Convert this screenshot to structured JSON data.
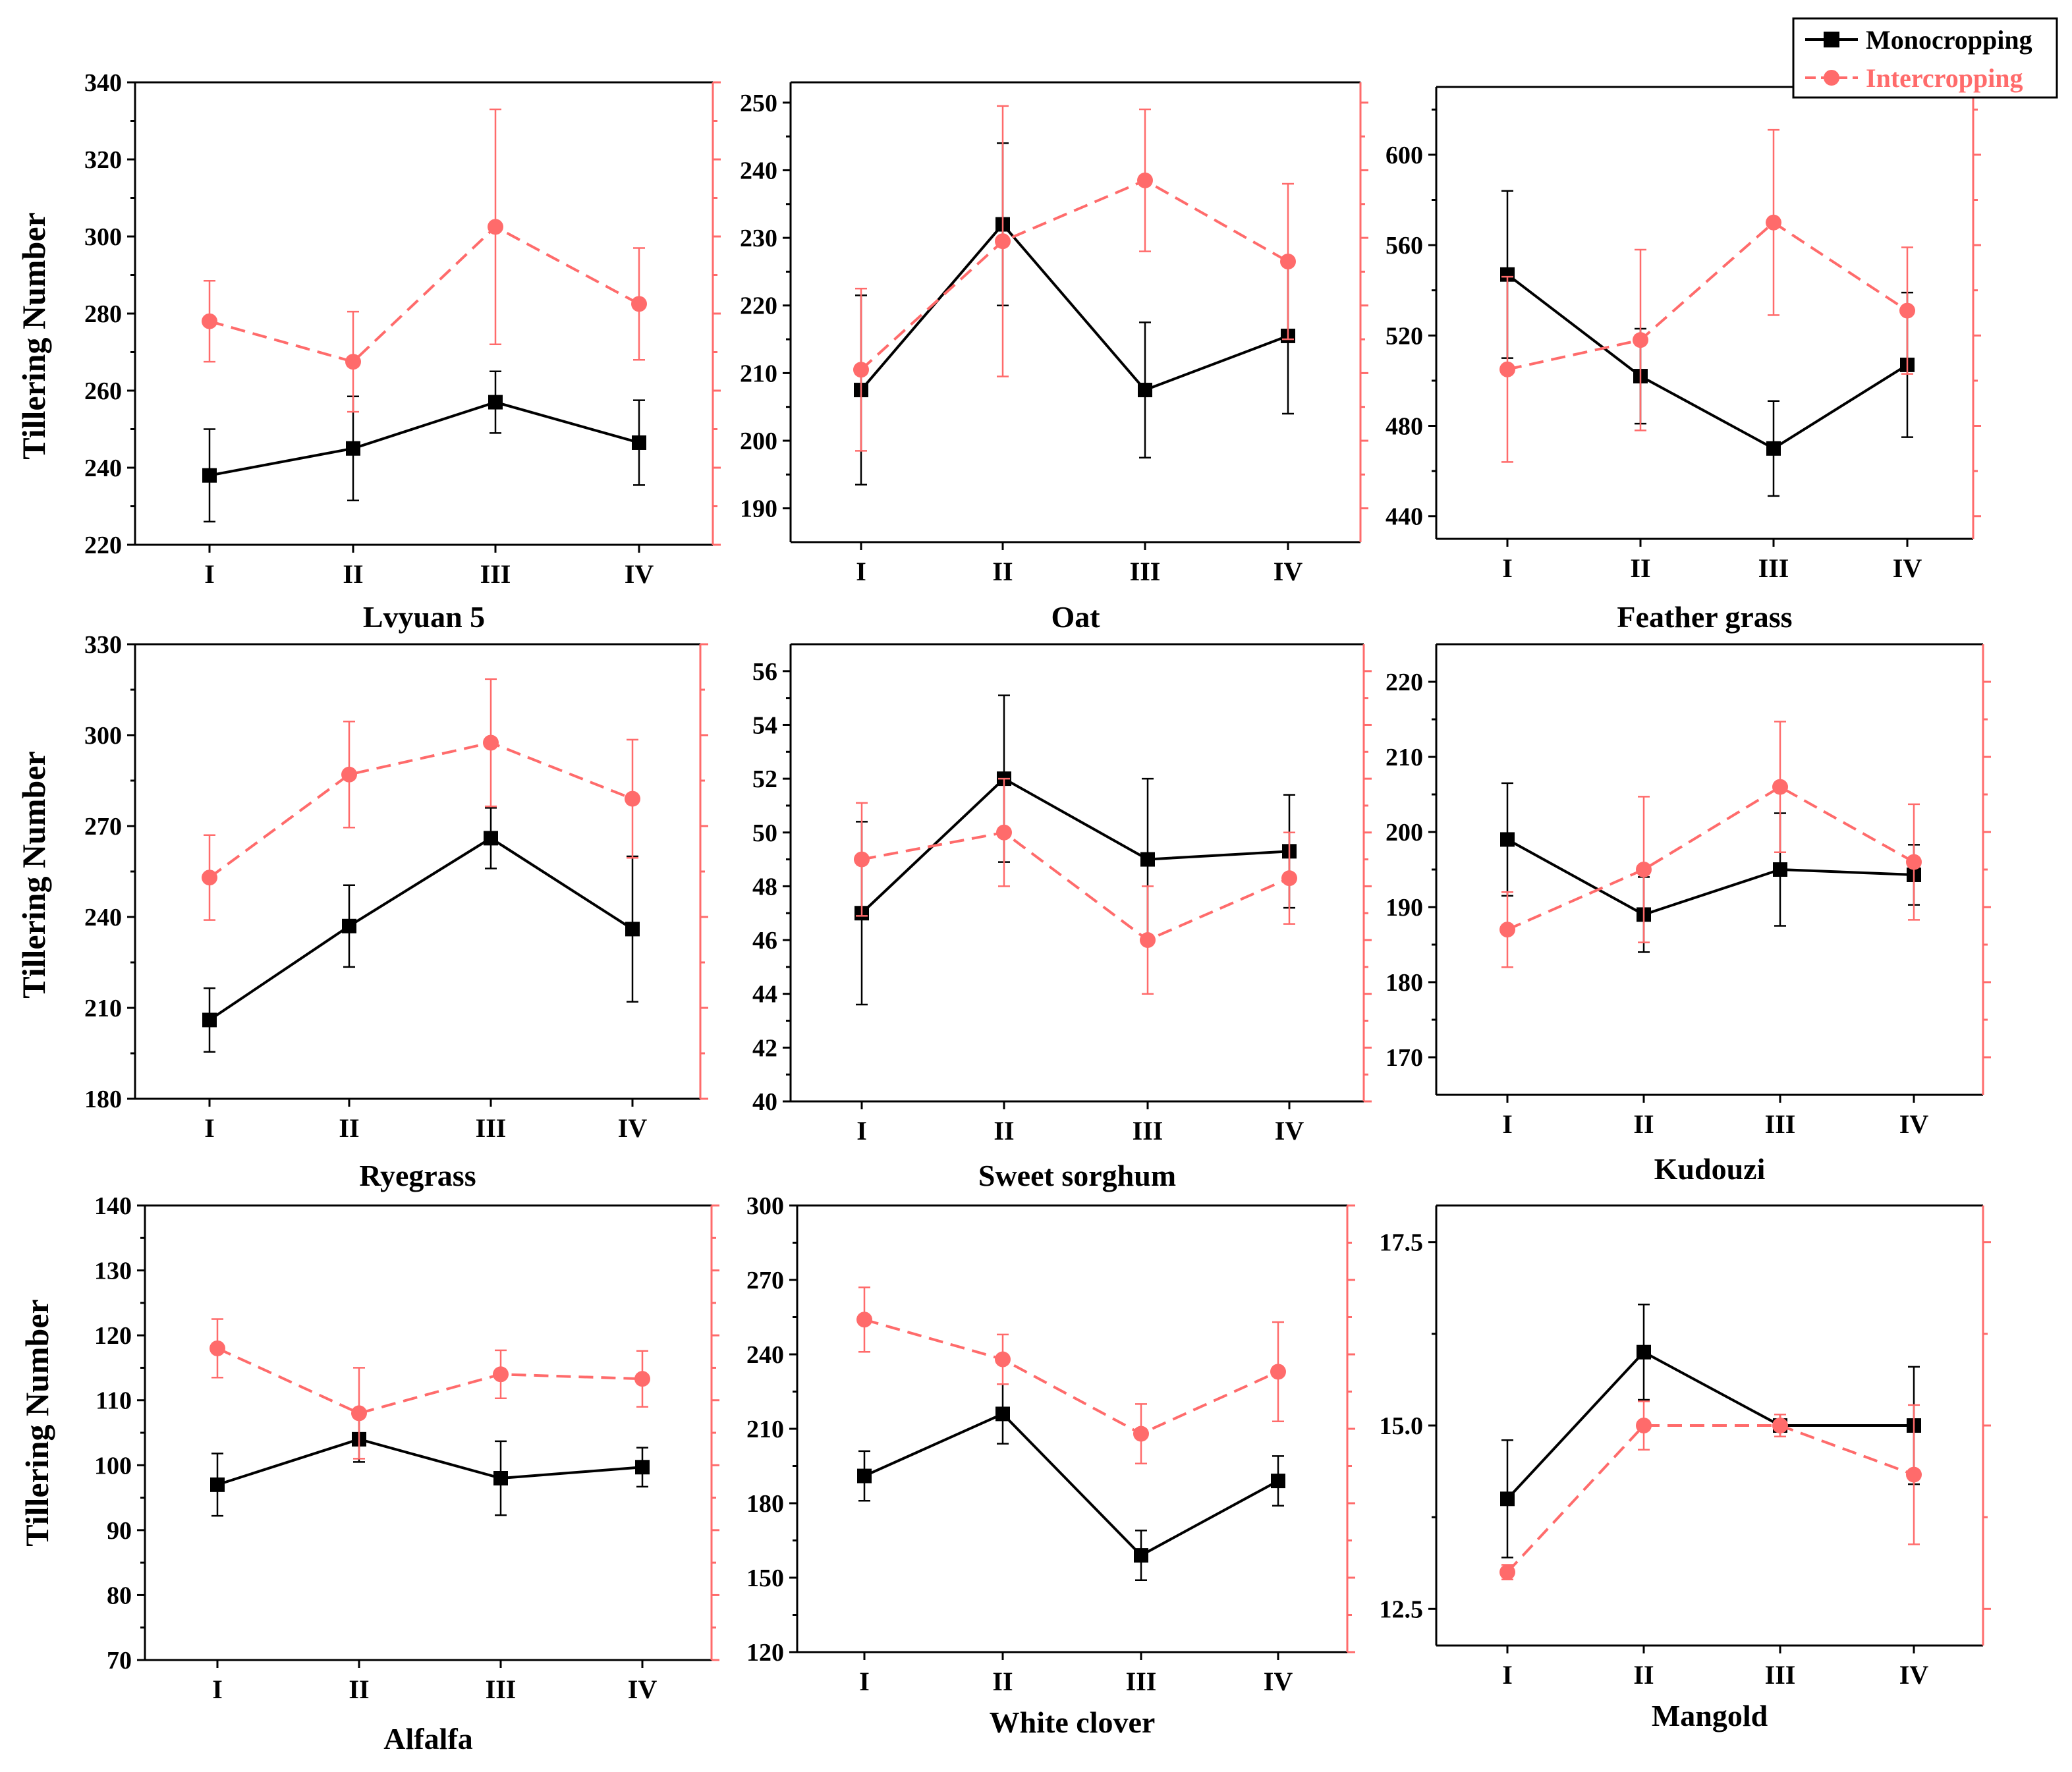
{
  "figure": {
    "y_axis_title": "Tillering Number",
    "legend": {
      "series": [
        {
          "name": "Monocropping",
          "color": "#000000",
          "marker": "square",
          "line": "solid"
        },
        {
          "name": "Intercropping",
          "color": "#ff6b6b",
          "marker": "circle",
          "line": "dashed"
        }
      ]
    }
  },
  "chart_data": [
    {
      "type": "line",
      "title": "Lvyuan 5",
      "categories": [
        "I",
        "II",
        "III",
        "IV"
      ],
      "ylim": [
        220,
        340
      ],
      "yticks": [
        220,
        240,
        260,
        280,
        300,
        320,
        340
      ],
      "ytick_labels": [
        "220",
        "240",
        "260",
        "280",
        "300",
        "320",
        "340"
      ],
      "series": [
        {
          "name": "Monocropping",
          "values": [
            238,
            245,
            257,
            246.5
          ],
          "errors": [
            12,
            13.5,
            8,
            11
          ]
        },
        {
          "name": "Intercropping",
          "values": [
            278,
            267.5,
            302.5,
            282.5
          ],
          "errors": [
            10.5,
            13,
            30.5,
            14.5
          ]
        }
      ]
    },
    {
      "type": "line",
      "title": "Oat",
      "categories": [
        "I",
        "II",
        "III",
        "IV"
      ],
      "ylim": [
        185,
        253
      ],
      "yticks": [
        190,
        200,
        210,
        220,
        230,
        240,
        250
      ],
      "ytick_labels": [
        "190",
        "200",
        "210",
        "220",
        "230",
        "240",
        "250"
      ],
      "series": [
        {
          "name": "Monocropping",
          "values": [
            207.5,
            232,
            207.5,
            215.5
          ],
          "errors": [
            14,
            12,
            10,
            11.5
          ]
        },
        {
          "name": "Intercropping",
          "values": [
            210.5,
            229.5,
            238.5,
            226.5
          ],
          "errors": [
            12,
            20,
            10.5,
            11.5
          ]
        }
      ]
    },
    {
      "type": "line",
      "title": "Feather grass",
      "categories": [
        "I",
        "II",
        "III",
        "IV"
      ],
      "ylim": [
        430,
        630
      ],
      "yticks": [
        440,
        480,
        520,
        560,
        600
      ],
      "ytick_labels": [
        "440",
        "480",
        "520",
        "560",
        "600"
      ],
      "series": [
        {
          "name": "Monocropping",
          "values": [
            547,
            502,
            470,
            507
          ],
          "errors": [
            37,
            21,
            21,
            32
          ]
        },
        {
          "name": "Intercropping",
          "values": [
            505,
            518,
            570,
            531
          ],
          "errors": [
            41,
            40,
            41,
            28
          ]
        }
      ]
    },
    {
      "type": "line",
      "title": "Ryegrass",
      "categories": [
        "I",
        "II",
        "III",
        "IV"
      ],
      "ylim": [
        180,
        330
      ],
      "yticks": [
        180,
        210,
        240,
        270,
        300,
        330
      ],
      "ytick_labels": [
        "180",
        "210",
        "240",
        "270",
        "300",
        "330"
      ],
      "series": [
        {
          "name": "Monocropping",
          "values": [
            206,
            237,
            266,
            236
          ],
          "errors": [
            10.5,
            13.5,
            10,
            24
          ]
        },
        {
          "name": "Intercropping",
          "values": [
            253,
            287,
            297.5,
            279
          ],
          "errors": [
            14,
            17.5,
            21,
            19.5
          ]
        }
      ]
    },
    {
      "type": "line",
      "title": "Sweet sorghum",
      "categories": [
        "I",
        "II",
        "III",
        "IV"
      ],
      "ylim": [
        40,
        57
      ],
      "yticks": [
        40,
        42,
        44,
        46,
        48,
        50,
        52,
        54,
        56
      ],
      "ytick_labels": [
        "40",
        "42",
        "44",
        "46",
        "48",
        "50",
        "52",
        "54",
        "56"
      ],
      "series": [
        {
          "name": "Monocropping",
          "values": [
            47,
            52,
            49,
            49.3
          ],
          "errors": [
            3.4,
            3.1,
            3,
            2.1
          ]
        },
        {
          "name": "Intercropping",
          "values": [
            49,
            50,
            46,
            48.3
          ],
          "errors": [
            2.1,
            2,
            2,
            1.7
          ]
        }
      ]
    },
    {
      "type": "line",
      "title": "Kudouzi",
      "categories": [
        "I",
        "II",
        "III",
        "IV"
      ],
      "ylim": [
        165,
        225
      ],
      "yticks": [
        170,
        180,
        190,
        200,
        210,
        220
      ],
      "ytick_labels": [
        "170",
        "180",
        "190",
        "200",
        "210",
        "220"
      ],
      "series": [
        {
          "name": "Monocropping",
          "values": [
            199,
            189,
            195,
            194.3
          ],
          "errors": [
            7.5,
            5,
            7.5,
            4
          ]
        },
        {
          "name": "Intercropping",
          "values": [
            187,
            195,
            206,
            196
          ],
          "errors": [
            5,
            9.7,
            8.7,
            7.7
          ]
        }
      ]
    },
    {
      "type": "line",
      "title": "Alfalfa",
      "categories": [
        "I",
        "II",
        "III",
        "IV"
      ],
      "ylim": [
        70,
        140
      ],
      "yticks": [
        70,
        80,
        90,
        100,
        110,
        120,
        130,
        140
      ],
      "ytick_labels": [
        "70",
        "80",
        "90",
        "100",
        "110",
        "120",
        "130",
        "140"
      ],
      "series": [
        {
          "name": "Monocropping",
          "values": [
            97,
            104,
            98,
            99.7
          ],
          "errors": [
            4.8,
            3.5,
            5.7,
            3
          ]
        },
        {
          "name": "Intercropping",
          "values": [
            118,
            108,
            114,
            113.3
          ],
          "errors": [
            4.5,
            7,
            3.7,
            4.3
          ]
        }
      ]
    },
    {
      "type": "line",
      "title": "White clover",
      "categories": [
        "I",
        "II",
        "III",
        "IV"
      ],
      "ylim": [
        120,
        300
      ],
      "yticks": [
        120,
        150,
        180,
        210,
        240,
        270,
        300
      ],
      "ytick_labels": [
        "120",
        "150",
        "180",
        "210",
        "240",
        "270",
        "300"
      ],
      "series": [
        {
          "name": "Monocropping",
          "values": [
            191,
            216,
            159,
            189
          ],
          "errors": [
            10,
            12,
            10,
            10
          ]
        },
        {
          "name": "Intercropping",
          "values": [
            254,
            238,
            208,
            233
          ],
          "errors": [
            13,
            10,
            12,
            20
          ]
        }
      ]
    },
    {
      "type": "line",
      "title": "Mangold",
      "categories": [
        "I",
        "II",
        "III",
        "IV"
      ],
      "ylim": [
        12,
        18
      ],
      "yticks": [
        12.5,
        15.0,
        17.5
      ],
      "ytick_labels": [
        "12.5",
        "15.0",
        "17.5"
      ],
      "series": [
        {
          "name": "Monocropping",
          "values": [
            14,
            16,
            15,
            15
          ],
          "errors": [
            0.8,
            0.65,
            0.15,
            0.8
          ]
        },
        {
          "name": "Intercropping",
          "values": [
            13,
            15,
            15,
            14.33
          ],
          "errors": [
            0.1,
            0.33,
            0.15,
            0.95
          ]
        }
      ]
    }
  ]
}
